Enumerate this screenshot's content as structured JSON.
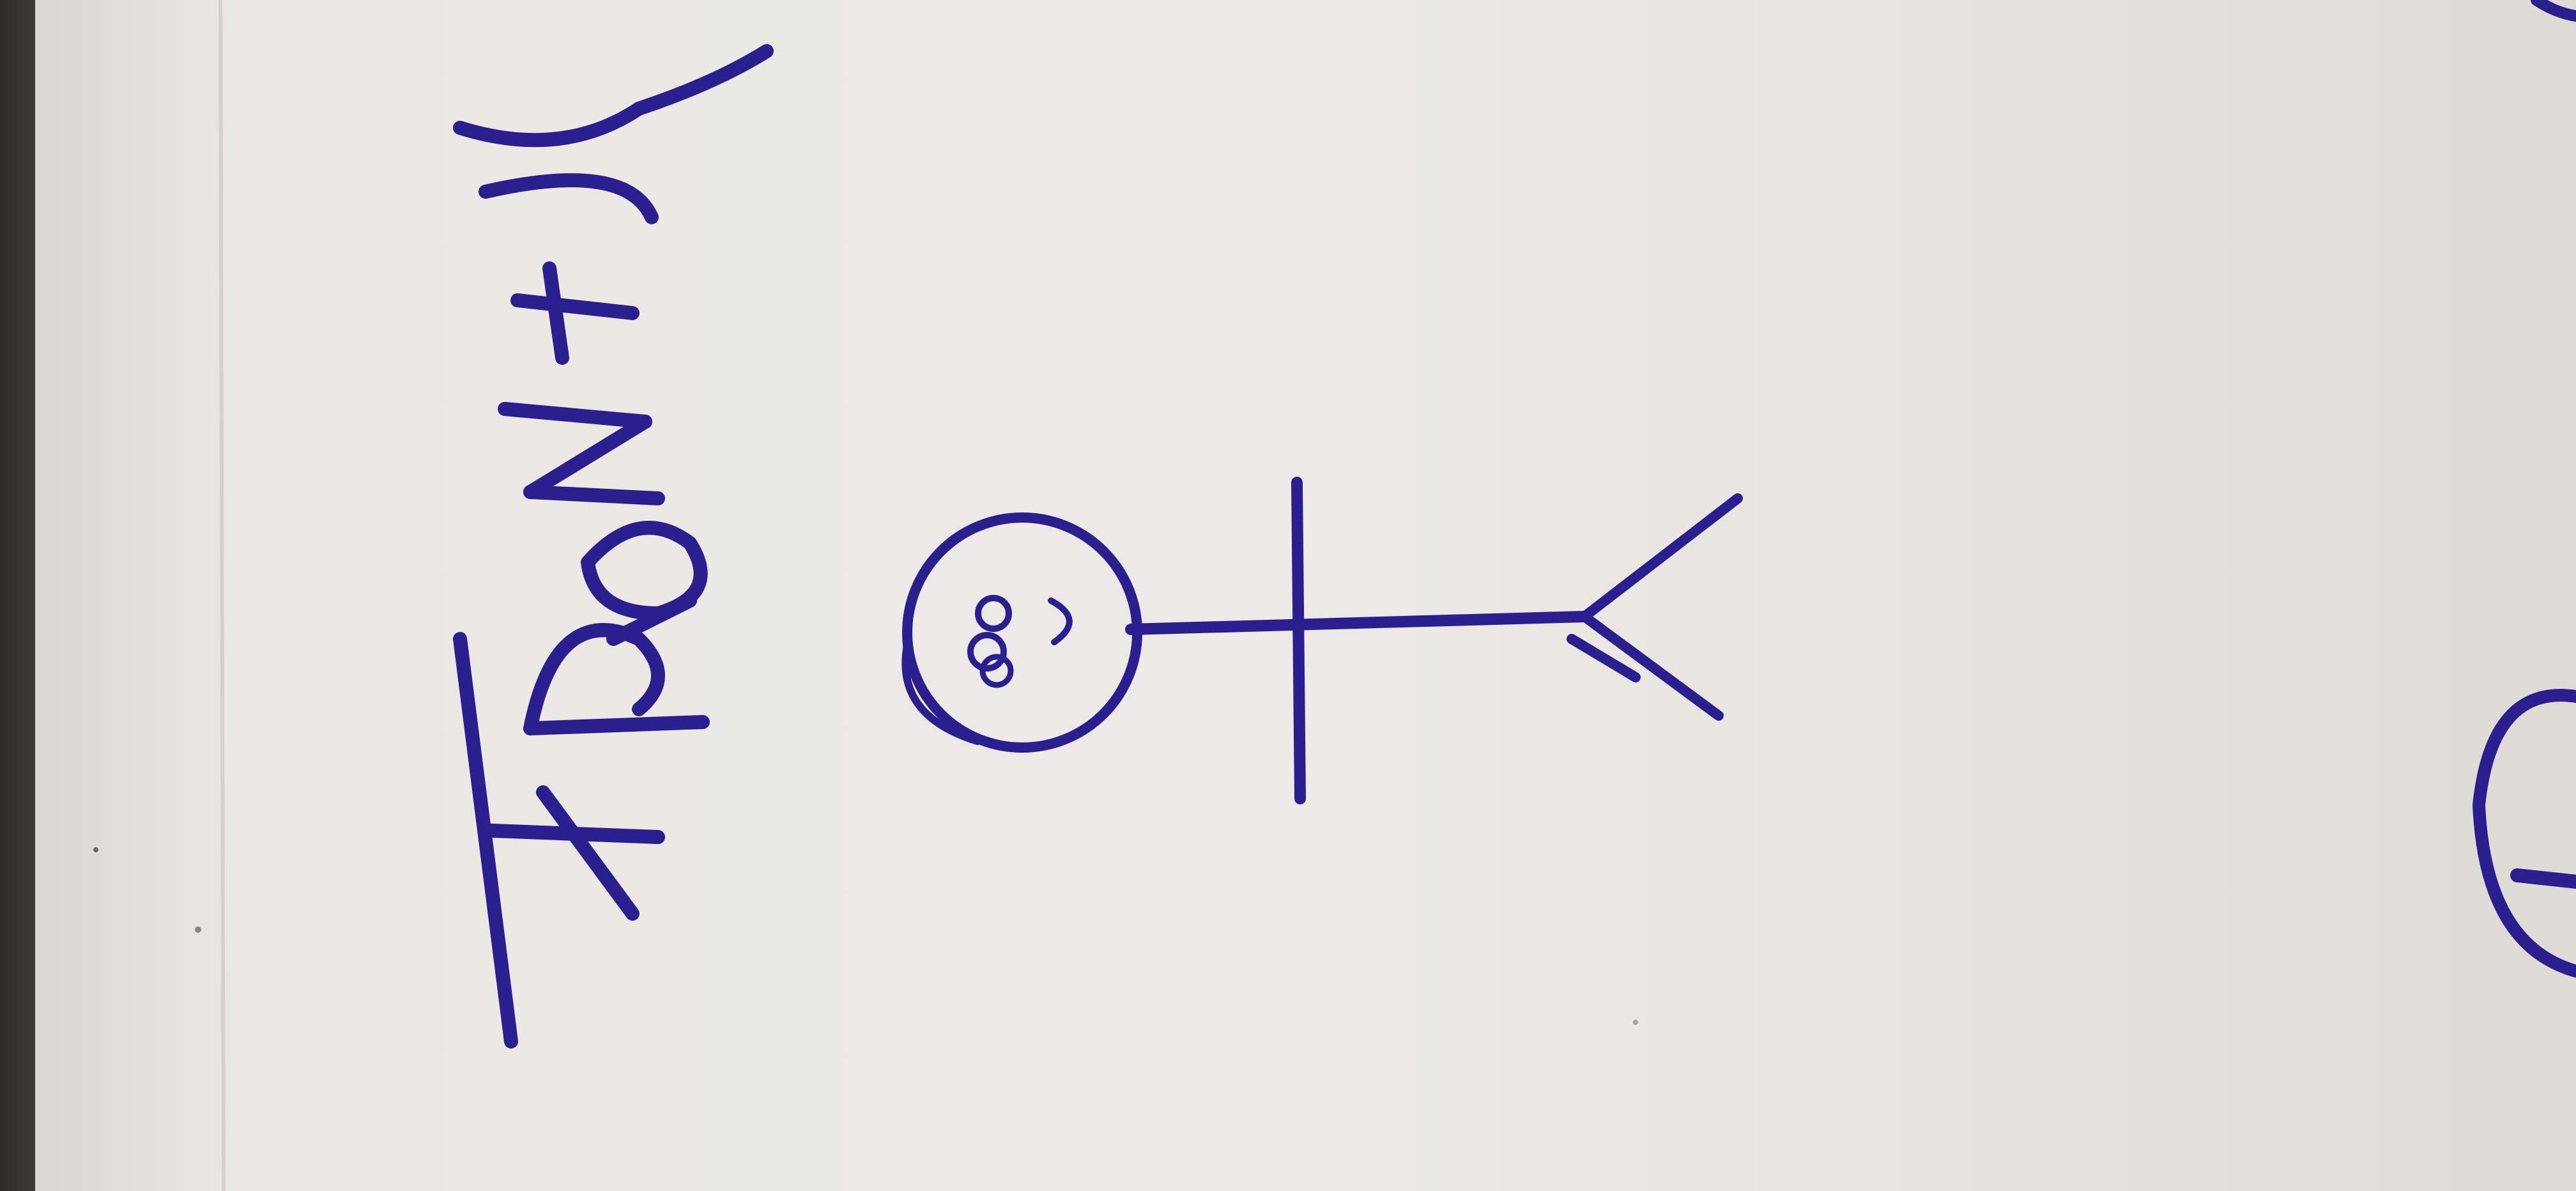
{
  "scene": {
    "subject": "stick-figure",
    "handwritten_text": "FRONT (v",
    "colors": {
      "ink": "#2b1f8f",
      "paper": "#ecebe7",
      "paper_shadow": "#dcdad3",
      "background": "#3a3833"
    }
  }
}
